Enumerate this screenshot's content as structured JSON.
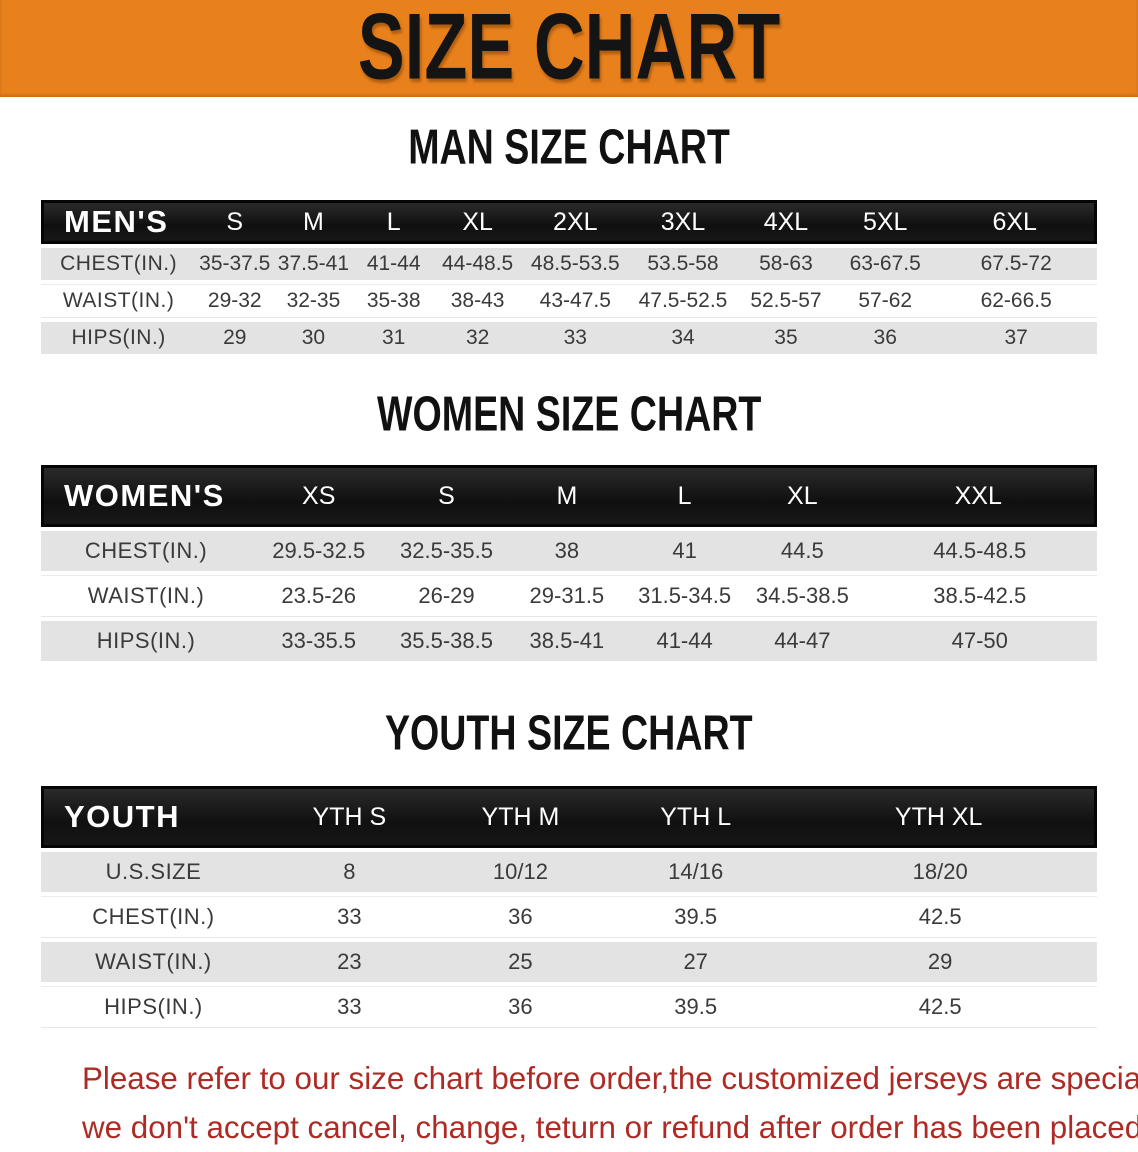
{
  "banner": {
    "title": "SIZE CHART"
  },
  "colors": {
    "banner_bg": "#E8811C",
    "header_bar": "#171717",
    "row_gray": "#E3E3E3",
    "row_white": "#FFFFFF",
    "disclaimer_red": "#AE2B25"
  },
  "sections": [
    {
      "heading": "MAN SIZE CHART",
      "table": {
        "label": "MEN'S",
        "columns": [
          "S",
          "M",
          "L",
          "XL",
          "2XL",
          "3XL",
          "4XL",
          "5XL",
          "6XL"
        ],
        "rows": [
          {
            "label": "CHEST(IN.)",
            "values": [
              "35-37.5",
              "37.5-41",
              "41-44",
              "44-48.5",
              "48.5-53.5",
              "53.5-58",
              "58-63",
              "63-67.5",
              "67.5-72"
            ]
          },
          {
            "label": "WAIST(IN.)",
            "values": [
              "29-32",
              "32-35",
              "35-38",
              "38-43",
              "43-47.5",
              "47.5-52.5",
              "52.5-57",
              "57-62",
              "62-66.5"
            ]
          },
          {
            "label": "HIPS(IN.)",
            "values": [
              "29",
              "30",
              "31",
              "32",
              "33",
              "34",
              "35",
              "36",
              "37"
            ]
          }
        ]
      }
    },
    {
      "heading": "WOMEN SIZE CHART",
      "table": {
        "label": "WOMEN'S",
        "columns": [
          "XS",
          "S",
          "M",
          "L",
          "XL",
          "XXL"
        ],
        "rows": [
          {
            "label": "CHEST(IN.)",
            "values": [
              "29.5-32.5",
              "32.5-35.5",
              "38",
              "41",
              "44.5",
              "44.5-48.5"
            ]
          },
          {
            "label": "WAIST(IN.)",
            "values": [
              "23.5-26",
              "26-29",
              "29-31.5",
              "31.5-34.5",
              "34.5-38.5",
              "38.5-42.5"
            ]
          },
          {
            "label": "HIPS(IN.)",
            "values": [
              "33-35.5",
              "35.5-38.5",
              "38.5-41",
              "41-44",
              "44-47",
              "47-50"
            ]
          }
        ]
      }
    },
    {
      "heading": "YOUTH SIZE CHART",
      "table": {
        "label": "YOUTH",
        "columns": [
          "YTH S",
          "YTH M",
          "YTH L",
          "YTH XL"
        ],
        "rows": [
          {
            "label": "U.S.SIZE",
            "values": [
              "8",
              "10/12",
              "14/16",
              "18/20"
            ]
          },
          {
            "label": "CHEST(IN.)",
            "values": [
              "33",
              "36",
              "39.5",
              "42.5"
            ]
          },
          {
            "label": "WAIST(IN.)",
            "values": [
              "23",
              "25",
              "27",
              "29"
            ]
          },
          {
            "label": "HIPS(IN.)",
            "values": [
              "33",
              "36",
              "39.5",
              "42.5"
            ]
          }
        ]
      }
    }
  ],
  "disclaimer": {
    "line1": "Please refer to our size chart before order,the customized jerseys are special products,",
    "line2": "we don't accept cancel, change, teturn or refund after order has been placed!"
  }
}
